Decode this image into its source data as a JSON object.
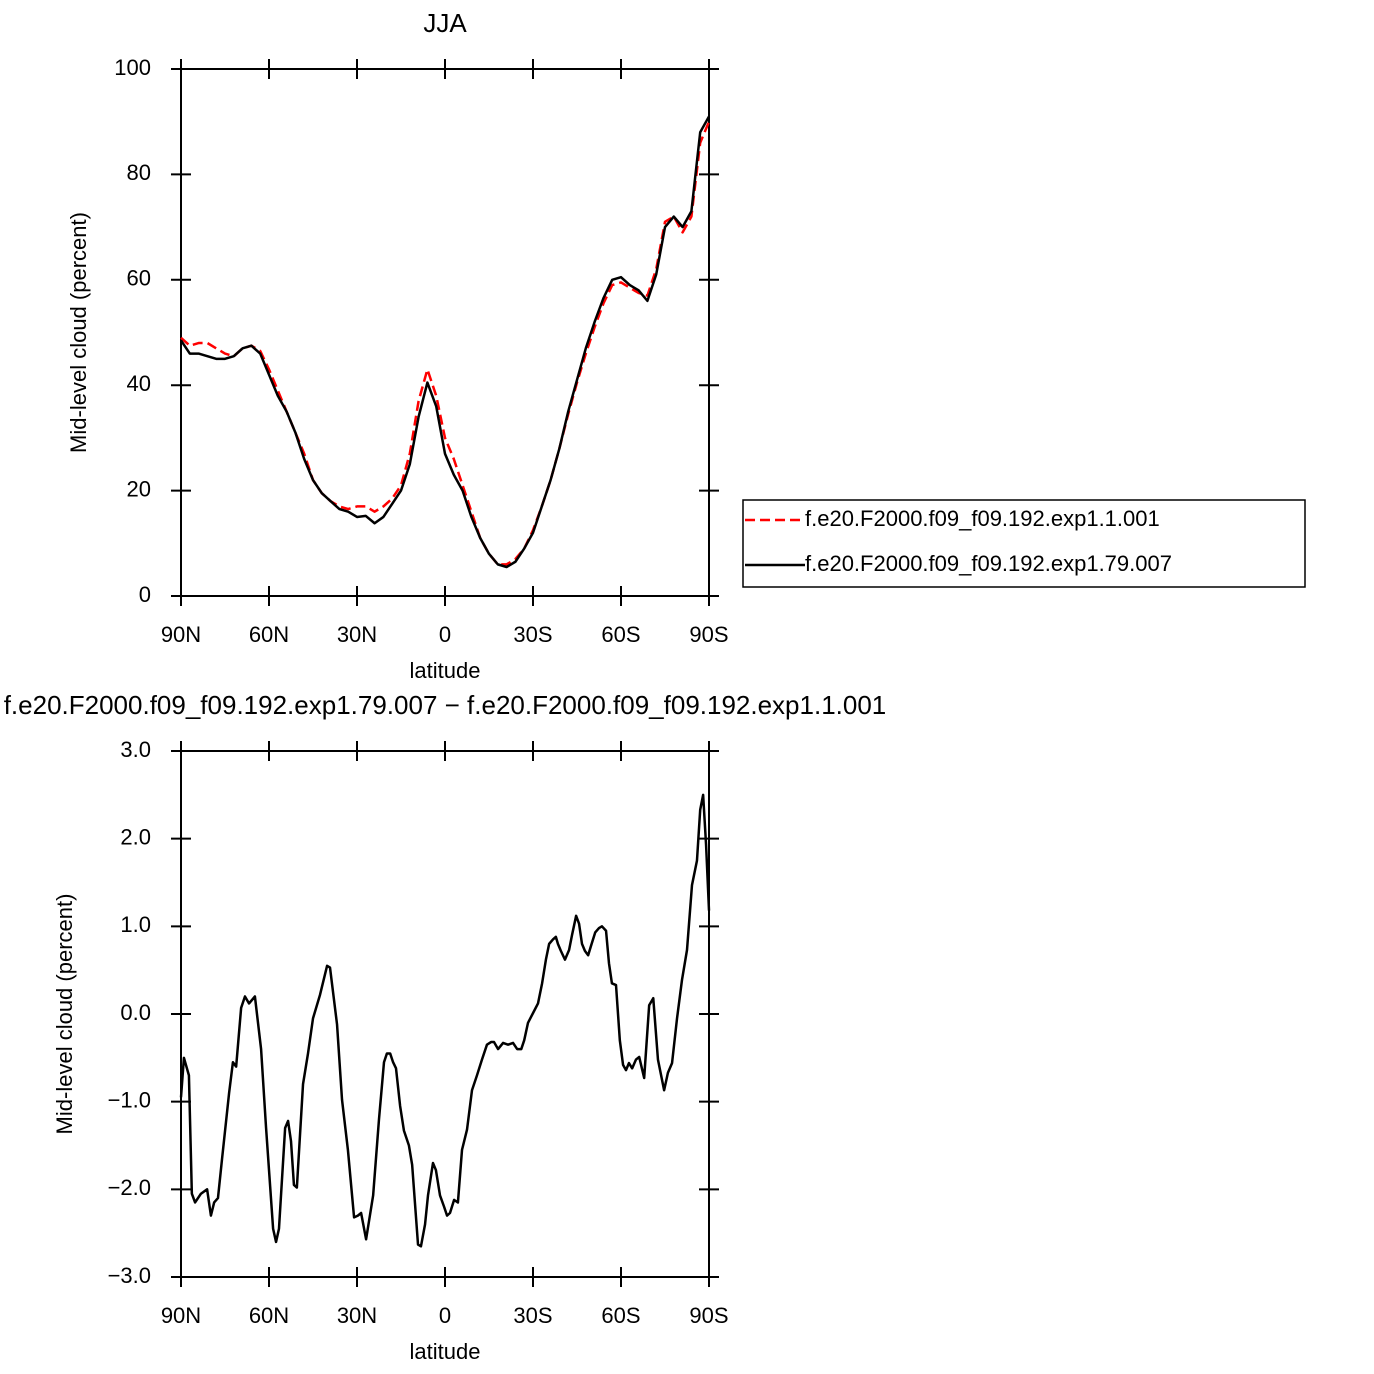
{
  "chart_data": [
    {
      "type": "line",
      "title": "JJA",
      "xlabel": "latitude",
      "ylabel": "Mid-level cloud (percent)",
      "x": [
        90,
        87,
        84,
        81,
        78,
        75,
        72,
        69,
        66,
        63,
        60,
        57,
        54,
        51,
        48,
        45,
        42,
        39,
        36,
        33,
        30,
        27,
        24,
        21,
        18,
        15,
        12,
        9,
        6,
        3,
        0,
        -3,
        -6,
        -9,
        -12,
        -15,
        -18,
        -21,
        -24,
        -27,
        -30,
        -33,
        -36,
        -39,
        -42,
        -45,
        -48,
        -51,
        -54,
        -57,
        -60,
        -63,
        -66,
        -69,
        -72,
        -75,
        -78,
        -81,
        -84,
        -87,
        -90
      ],
      "series": [
        {
          "name": "f.e20.F2000.f09_f09.192.exp1.1.001",
          "color": "#ff0000",
          "linestyle": "dashed",
          "values": [
            49,
            47.5,
            48,
            48,
            47,
            46,
            45.5,
            47,
            47.5,
            46.5,
            43,
            39,
            35,
            31,
            27,
            22,
            19.5,
            18,
            17,
            16.5,
            17,
            17,
            16,
            17,
            18.5,
            21,
            27,
            37,
            43,
            38,
            30,
            26,
            21,
            16,
            11,
            8,
            6,
            6,
            7,
            9,
            12.5,
            17,
            22,
            28,
            34.5,
            40.5,
            46,
            51,
            55.5,
            59,
            59.5,
            58.5,
            57.5,
            57,
            62,
            71,
            72,
            69,
            72,
            86,
            90
          ]
        },
        {
          "name": "f.e20.F2000.f09_f09.192.exp1.79.007",
          "color": "#000000",
          "linestyle": "solid",
          "values": [
            48.5,
            46,
            46,
            45.5,
            45,
            45,
            45.5,
            47,
            47.5,
            46,
            42,
            38,
            35,
            31,
            26,
            22,
            19.5,
            18,
            16.5,
            16,
            15,
            15.2,
            13.8,
            15,
            17.5,
            20,
            25,
            34,
            40.5,
            36,
            27,
            23,
            20,
            15,
            11,
            8,
            6,
            5.5,
            6.5,
            9,
            12,
            17,
            22,
            28,
            35,
            41,
            47,
            52,
            56.5,
            60,
            60.5,
            59,
            58,
            56,
            61,
            70,
            72,
            70,
            73,
            88,
            91
          ]
        }
      ],
      "xlim": [
        90,
        -90
      ],
      "xticks": [
        {
          "value": 90,
          "label": "90N"
        },
        {
          "value": 60,
          "label": "60N"
        },
        {
          "value": 30,
          "label": "30N"
        },
        0,
        {
          "value": -30,
          "label": "30S"
        },
        {
          "value": -60,
          "label": "60S"
        },
        {
          "value": -90,
          "label": "90S"
        }
      ],
      "ylim": [
        0,
        100
      ],
      "yticks": [
        0,
        20,
        40,
        60,
        80,
        100
      ],
      "legend": "right"
    },
    {
      "type": "line",
      "title": "f.e20.F2000.f09_f09.192.exp1.79.007 − f.e20.F2000.f09_f09.192.exp1.1.001",
      "xlabel": "latitude",
      "ylabel": "Mid-level cloud (percent)",
      "x": [
        90,
        89,
        87.3,
        86.3,
        85.2,
        83.2,
        81.1,
        79.8,
        78.7,
        77.4,
        76,
        73.6,
        72.3,
        71.2,
        69.5,
        68.2,
        66.8,
        64.8,
        62.7,
        61,
        58.6,
        57.6,
        56.6,
        54.5,
        53.5,
        52.5,
        51.5,
        50.5,
        48.4,
        46.7,
        45,
        42.6,
        40.2,
        39.2,
        36.8,
        35.1,
        33.1,
        31,
        29.7,
        28.6,
        26.9,
        24.5,
        22.5,
        20.8,
        19.8,
        18.7,
        17.7,
        16.7,
        15.3,
        14,
        12.3,
        11.2,
        9.2,
        8.2,
        6.8,
        5.8,
        4.1,
        3.1,
        1.7,
        0.3,
        -0.7,
        -1.7,
        -3.1,
        -4.4,
        -5.8,
        -7.5,
        -9.2,
        -10.9,
        -12.6,
        -14.3,
        -15.7,
        -16.7,
        -18.1,
        -19.8,
        -21.5,
        -23.2,
        -24.6,
        -26,
        -27,
        -28.3,
        -30,
        -31.7,
        -33.1,
        -34.4,
        -35.5,
        -36.8,
        -37.8,
        -38.5,
        -39.5,
        -40.9,
        -42.3,
        -43.3,
        -44.7,
        -45.7,
        -46.7,
        -47.7,
        -48.8,
        -49.8,
        -51.2,
        -52.5,
        -53.5,
        -54.9,
        -55.9,
        -56.9,
        -58.3,
        -59.6,
        -60.7,
        -61.7,
        -62.7,
        -63.8,
        -65.1,
        -66.2,
        -67.9,
        -69.6,
        -71,
        -72.6,
        -74.7,
        -76,
        -77.4,
        -79.1,
        -80.8,
        -82.5,
        -84.2,
        -85.9,
        -87,
        -88,
        -89,
        -90
      ],
      "series": [
        {
          "color": "#000000",
          "linestyle": "solid",
          "values": [
            -0.95,
            -0.5,
            -0.7,
            -2.05,
            -2.15,
            -2.05,
            -2,
            -2.3,
            -2.15,
            -2.1,
            -1.65,
            -0.9,
            -0.55,
            -0.6,
            0.07,
            0.2,
            0.12,
            0.2,
            -0.4,
            -1.3,
            -2.45,
            -2.6,
            -2.45,
            -1.3,
            -1.22,
            -1.45,
            -1.95,
            -1.98,
            -0.8,
            -0.45,
            -0.05,
            0.22,
            0.55,
            0.53,
            -0.12,
            -0.98,
            -1.55,
            -2.32,
            -2.3,
            -2.27,
            -2.57,
            -2.07,
            -1.2,
            -0.55,
            -0.45,
            -0.45,
            -0.55,
            -0.62,
            -1.05,
            -1.33,
            -1.5,
            -1.72,
            -2.63,
            -2.65,
            -2.4,
            -2.07,
            -1.7,
            -1.78,
            -2.07,
            -2.2,
            -2.3,
            -2.27,
            -2.12,
            -2.15,
            -1.55,
            -1.32,
            -0.87,
            -0.7,
            -0.52,
            -0.35,
            -0.32,
            -0.32,
            -0.4,
            -0.33,
            -0.35,
            -0.33,
            -0.4,
            -0.4,
            -0.3,
            -0.1,
            0.01,
            0.12,
            0.35,
            0.62,
            0.8,
            0.85,
            0.88,
            0.8,
            0.72,
            0.62,
            0.73,
            0.9,
            1.12,
            1.03,
            0.8,
            0.72,
            0.67,
            0.78,
            0.93,
            0.98,
            1,
            0.95,
            0.58,
            0.35,
            0.33,
            -0.3,
            -0.58,
            -0.64,
            -0.56,
            -0.62,
            -0.52,
            -0.49,
            -0.73,
            0.1,
            0.18,
            -0.52,
            -0.87,
            -0.67,
            -0.56,
            -0.05,
            0.39,
            0.73,
            1.47,
            1.75,
            2.33,
            2.5,
            1.93,
            1.18
          ]
        }
      ],
      "xlim": [
        90,
        -90
      ],
      "xticks": [
        {
          "value": 90,
          "label": "90N"
        },
        {
          "value": 60,
          "label": "60N"
        },
        {
          "value": 30,
          "label": "30N"
        },
        0,
        {
          "value": -30,
          "label": "30S"
        },
        {
          "value": -60,
          "label": "60S"
        },
        {
          "value": -90,
          "label": "90S"
        }
      ],
      "ylim": [
        -3,
        3
      ],
      "yticks": [
        {
          "value": -3,
          "label": "−3.0"
        },
        {
          "value": -2,
          "label": "−2.0"
        },
        {
          "value": -1,
          "label": "−1.0"
        },
        {
          "value": 0,
          "label": "0.0"
        },
        {
          "value": 1,
          "label": "1.0"
        },
        {
          "value": 2,
          "label": "2.0"
        },
        {
          "value": 3,
          "label": "3.0"
        }
      ]
    }
  ]
}
